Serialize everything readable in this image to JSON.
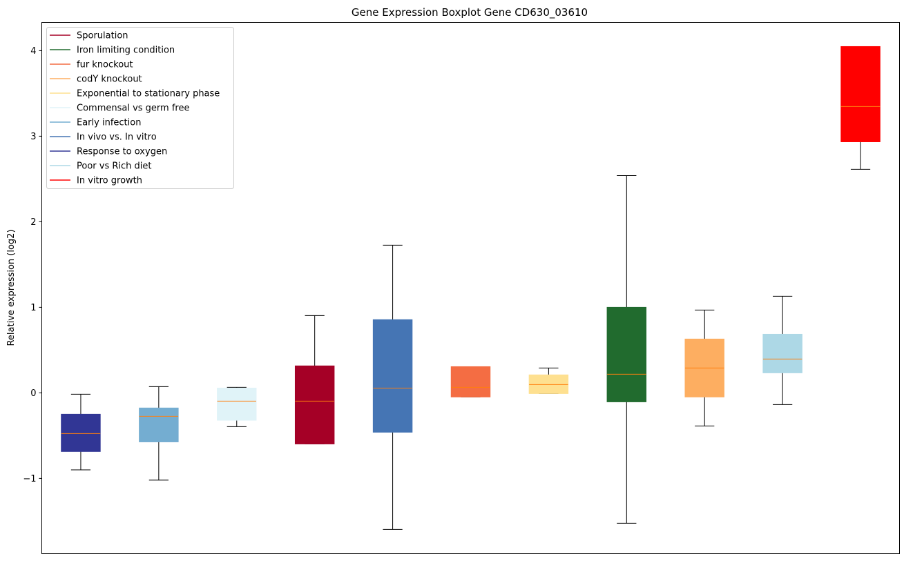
{
  "chart_data": {
    "type": "boxplot",
    "title": "Gene Expression Boxplot Gene CD630_03610",
    "xlabel": "",
    "ylabel": "Relative expression (log2)",
    "ylim": [
      -1.88,
      4.33
    ],
    "yticks": [
      -1,
      0,
      1,
      2,
      3,
      4
    ],
    "ytick_labels": [
      "−1",
      "0",
      "1",
      "2",
      "3",
      "4"
    ],
    "grid": false,
    "legend_position": "top-left",
    "median_color": "#ff7f0e",
    "legend": [
      {
        "label": "Sporulation",
        "color": "#a50026"
      },
      {
        "label": "Iron limiting condition",
        "color": "#216b2e"
      },
      {
        "label": "fur knockout",
        "color": "#f46d43"
      },
      {
        "label": "codY knockout",
        "color": "#fdae61"
      },
      {
        "label": "Exponential to stationary phase",
        "color": "#fee090"
      },
      {
        "label": "Commensal vs germ free",
        "color": "#e0f3f8"
      },
      {
        "label": "Early infection",
        "color": "#74add1"
      },
      {
        "label": "In vivo vs. In vitro",
        "color": "#4575b4"
      },
      {
        "label": "Response to oxygen",
        "color": "#313695"
      },
      {
        "label": "Poor vs Rich diet",
        "color": "#add8e6"
      },
      {
        "label": "In vitro growth",
        "color": "#ff0000"
      }
    ],
    "boxes": [
      {
        "group": "Response to oxygen",
        "color": "#313695",
        "whislo": -0.9,
        "q1": -0.685,
        "med": -0.476,
        "q3": -0.25,
        "whishi": -0.016
      },
      {
        "group": "Early infection",
        "color": "#74add1",
        "whislo": -1.02,
        "q1": -0.573,
        "med": -0.274,
        "q3": -0.177,
        "whishi": 0.073
      },
      {
        "group": "Commensal vs germ free",
        "color": "#e0f3f8",
        "whislo": -0.395,
        "q1": -0.32,
        "med": -0.097,
        "q3": 0.056,
        "whishi": 0.065
      },
      {
        "group": "Sporulation",
        "color": "#a50026",
        "whislo": -0.597,
        "q1": -0.597,
        "med": -0.097,
        "q3": 0.315,
        "whishi": 0.903
      },
      {
        "group": "In vivo vs. In vitro",
        "color": "#4575b4",
        "whislo": -1.597,
        "q1": -0.46,
        "med": 0.056,
        "q3": 0.855,
        "whishi": 1.726
      },
      {
        "group": "fur knockout",
        "color": "#f46d43",
        "whislo": -0.048,
        "q1": -0.048,
        "med": 0.065,
        "q3": 0.306,
        "whishi": 0.306
      },
      {
        "group": "Exponential to stationary phase",
        "color": "#fee090",
        "whislo": -0.008,
        "q1": -0.008,
        "med": 0.097,
        "q3": 0.21,
        "whishi": 0.29
      },
      {
        "group": "Iron limiting condition",
        "color": "#216b2e",
        "whislo": -1.524,
        "q1": -0.105,
        "med": 0.218,
        "q3": 1.0,
        "whishi": 2.54
      },
      {
        "group": "codY knockout",
        "color": "#fdae61",
        "whislo": -0.387,
        "q1": -0.048,
        "med": 0.29,
        "q3": 0.629,
        "whishi": 0.968
      },
      {
        "group": "Poor vs Rich diet",
        "color": "#add8e6",
        "whislo": -0.137,
        "q1": 0.234,
        "med": 0.395,
        "q3": 0.685,
        "whishi": 1.129
      },
      {
        "group": "In vitro growth",
        "color": "#ff0000",
        "whislo": 2.613,
        "q1": 2.935,
        "med": 3.347,
        "q3": 4.048,
        "whishi": 4.048
      }
    ]
  }
}
